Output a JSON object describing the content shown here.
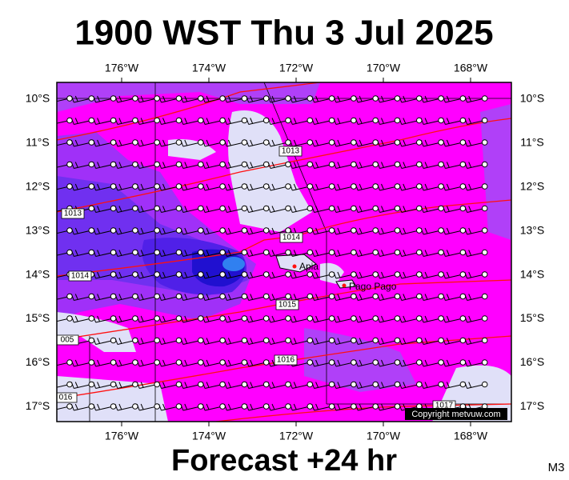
{
  "map": {
    "title": "1900 WST Thu 3 Jul 2025",
    "footer": "Forecast +24 hr",
    "corner_label": "M3",
    "lon_labels": [
      "176°W",
      "174°W",
      "172°W",
      "170°W",
      "168°W"
    ],
    "lat_labels": [
      "10°S",
      "11°S",
      "12°S",
      "13°S",
      "14°S",
      "15°S",
      "16°S",
      "17°S"
    ],
    "isobar_labels": [
      "1013",
      "1013",
      "1014",
      "1014",
      "1015",
      "005",
      "1016",
      "016",
      "1017"
    ],
    "places": [
      "Apia",
      "Pago Pago"
    ],
    "copyright": "Copyright metvuw.com"
  }
}
